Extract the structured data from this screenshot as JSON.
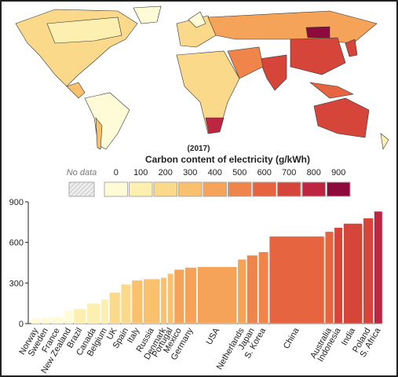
{
  "chart_data": [
    {
      "type": "map",
      "title": "(2017)",
      "subtitle": "Carbon content of electricity (g/kWh)",
      "no_data_label": "No data",
      "legend_ticks": [
        0,
        100,
        200,
        300,
        400,
        500,
        600,
        700,
        800,
        900
      ],
      "colors": [
        "#fffbd6",
        "#fdefb0",
        "#fbd98a",
        "#f9c06e",
        "#f6a35a",
        "#f0854b",
        "#e6643f",
        "#d6453a",
        "#bd2540",
        "#8e0a3c"
      ]
    },
    {
      "type": "bar",
      "categories": [
        "Norway",
        "Sweden",
        "France",
        "New Zealand",
        "Brazil",
        "Canada",
        "Belgium",
        "UK",
        "Spain",
        "Italy",
        "Russia",
        "Denmark",
        "Portugal",
        "Mexico",
        "Germany",
        "USA",
        "Netherlands",
        "Japan",
        "S. Korea",
        "China",
        "Australia",
        "Indonesia",
        "India",
        "Poland",
        "S. Africa"
      ],
      "values": [
        40,
        45,
        50,
        95,
        110,
        150,
        180,
        230,
        290,
        320,
        330,
        340,
        370,
        400,
        415,
        420,
        475,
        505,
        530,
        645,
        680,
        710,
        740,
        780,
        830
      ],
      "widths": [
        11,
        11,
        15,
        10,
        15,
        16,
        9,
        13,
        12,
        13,
        20,
        7,
        7,
        12,
        14,
        48,
        10,
        13,
        12,
        67,
        10,
        10,
        23,
        12,
        10
      ],
      "ylim": [
        0,
        900
      ],
      "yticks": [
        0,
        300,
        600,
        900
      ]
    }
  ]
}
